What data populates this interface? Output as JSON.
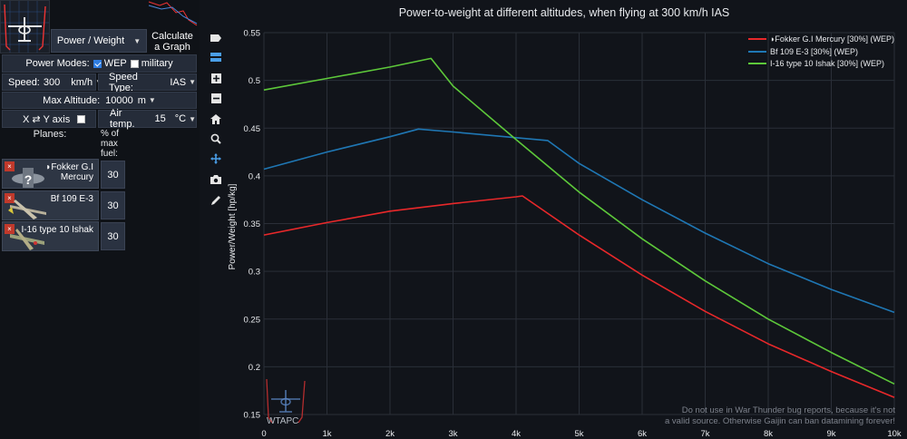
{
  "controls": {
    "graph_type": "Power / Weight",
    "calculate_label_1": "Calculate",
    "calculate_label_2": "a Graph",
    "power_modes_label": "Power Modes:",
    "wep_label": "WEP",
    "military_label": "military",
    "speed_label": "Speed:",
    "speed_value": "300",
    "speed_unit": "km/h",
    "speed_type_label": "Speed Type:",
    "speed_type_value": "IAS",
    "max_alt_label": "Max Altitude:",
    "max_alt_value": "10000",
    "max_alt_unit": "m",
    "swap_label": "X ⇄ Y axis",
    "air_temp_label": "Air temp.",
    "air_temp_value": "15",
    "air_temp_unit": "°C",
    "planes_label": "Planes:",
    "fuel_label": "% of max fuel:"
  },
  "planes": [
    {
      "name_line1": "◗Fokker G.I",
      "name_line2": "Mercury",
      "fuel": "30",
      "close": "×"
    },
    {
      "name_line1": "Bf 109 E-3",
      "name_line2": "",
      "fuel": "30",
      "close": "×"
    },
    {
      "name_line1": "I-16 type 10 Ishak",
      "name_line2": "",
      "fuel": "30",
      "close": "×"
    }
  ],
  "watermark": "WTAPC",
  "disclaimer_1": "Do not use in War Thunder bug reports, because it's not",
  "disclaimer_2": "a valid source. Otherwise Gaijin can ban datamining forever!",
  "chart_data": {
    "type": "line",
    "title": "Power-to-weight at different altitudes, when flying at 300 km/h IAS",
    "xlabel": "",
    "ylabel": "Power/Weight [hp/kg]",
    "xlim": [
      0,
      10000
    ],
    "ylim": [
      0.15,
      0.55
    ],
    "x_ticks": [
      0,
      1000,
      2000,
      3000,
      4000,
      5000,
      6000,
      7000,
      8000,
      9000,
      10000
    ],
    "x_tick_labels": [
      "0",
      "1k",
      "2k",
      "3k",
      "4k",
      "5k",
      "6k",
      "7k",
      "8k",
      "9k",
      "10k"
    ],
    "y_ticks": [
      0.15,
      0.2,
      0.25,
      0.3,
      0.35,
      0.4,
      0.45,
      0.5,
      0.55
    ],
    "y_tick_labels": [
      "0.15",
      "0.2",
      "0.25",
      "0.3",
      "0.35",
      "0.4",
      "0.45",
      "0.5",
      "0.55"
    ],
    "grid": true,
    "legend_position": "top-right",
    "series": [
      {
        "name": "◗Fokker G.I Mercury [30%] (WEP)",
        "color": "#e8282a",
        "x": [
          0,
          1000,
          2000,
          3000,
          4000,
          4100,
          5000,
          6000,
          7000,
          8000,
          9000,
          10000
        ],
        "y": [
          0.338,
          0.351,
          0.363,
          0.371,
          0.378,
          0.379,
          0.338,
          0.296,
          0.258,
          0.224,
          0.195,
          0.168
        ]
      },
      {
        "name": "Bf 109 E-3 [30%] (WEP)",
        "color": "#1f77b4",
        "x": [
          0,
          1000,
          2000,
          2450,
          3000,
          4000,
          4500,
          5000,
          6000,
          7000,
          8000,
          9000,
          10000
        ],
        "y": [
          0.407,
          0.425,
          0.441,
          0.449,
          0.446,
          0.44,
          0.437,
          0.413,
          0.375,
          0.34,
          0.308,
          0.281,
          0.257
        ]
      },
      {
        "name": "I-16 type 10 Ishak [30%] (WEP)",
        "color": "#5dc83a",
        "x": [
          0,
          1000,
          2000,
          2650,
          3000,
          4000,
          5000,
          6000,
          7000,
          8000,
          9000,
          10000
        ],
        "y": [
          0.49,
          0.502,
          0.514,
          0.523,
          0.494,
          0.438,
          0.383,
          0.334,
          0.29,
          0.25,
          0.215,
          0.182
        ]
      }
    ]
  }
}
